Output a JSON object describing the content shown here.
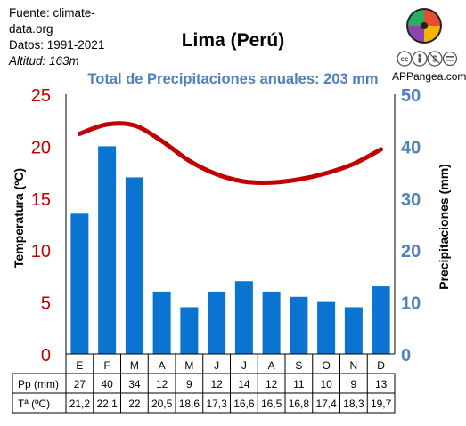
{
  "source": {
    "line1": "Fuente: climate-",
    "line2": "data.org",
    "period": "Datos: 1991-2021",
    "altitude": "Altitud: 163m"
  },
  "title": "Lima (Perú)",
  "subtitle": "Total de Precipitaciones anuales: 203 mm",
  "site": "APPangea.com",
  "icons": [
    "puzzle-logo-icon",
    "cc-icon",
    "by-icon",
    "nc-icon",
    "nd-icon"
  ],
  "colors": {
    "bars": "#0a74d0",
    "line": "#c00000",
    "left_axis": "#c00000",
    "right_axis": "#4f81bd",
    "subtitle": "#4f81bd"
  },
  "chart_data": {
    "type": "bar",
    "categories": [
      "E",
      "F",
      "M",
      "A",
      "M",
      "J",
      "J",
      "A",
      "S",
      "O",
      "N",
      "D"
    ],
    "series": [
      {
        "name": "Pp (mm)",
        "type": "bar",
        "axis": "right",
        "values": [
          27,
          40,
          34,
          12,
          9,
          12,
          14,
          12,
          11,
          10,
          9,
          13
        ]
      },
      {
        "name": "Tª (ºC)",
        "type": "line",
        "axis": "left",
        "values": [
          21.2,
          22.1,
          22,
          20.5,
          18.6,
          17.3,
          16.6,
          16.5,
          16.8,
          17.4,
          18.3,
          19.7
        ]
      }
    ],
    "table_rows": [
      {
        "label": "Pp (mm)",
        "cells": [
          "27",
          "40",
          "34",
          "12",
          "9",
          "12",
          "14",
          "12",
          "11",
          "10",
          "9",
          "13"
        ]
      },
      {
        "label": "Tª (ºC)",
        "cells": [
          "21,2",
          "22,1",
          "22",
          "20,5",
          "18,6",
          "17,3",
          "16,6",
          "16,5",
          "16,8",
          "17,4",
          "18,3",
          "19,7"
        ]
      }
    ],
    "ylabel_left": "Temperatura (ºC)",
    "ylabel_right": "Precipitaciones (mm)",
    "ylim_left": [
      0,
      25
    ],
    "ylim_right": [
      0,
      50
    ],
    "left_ticks": [
      0,
      5,
      10,
      15,
      20,
      25
    ],
    "right_ticks": [
      0,
      10,
      20,
      30,
      40,
      50
    ],
    "grid": false
  }
}
